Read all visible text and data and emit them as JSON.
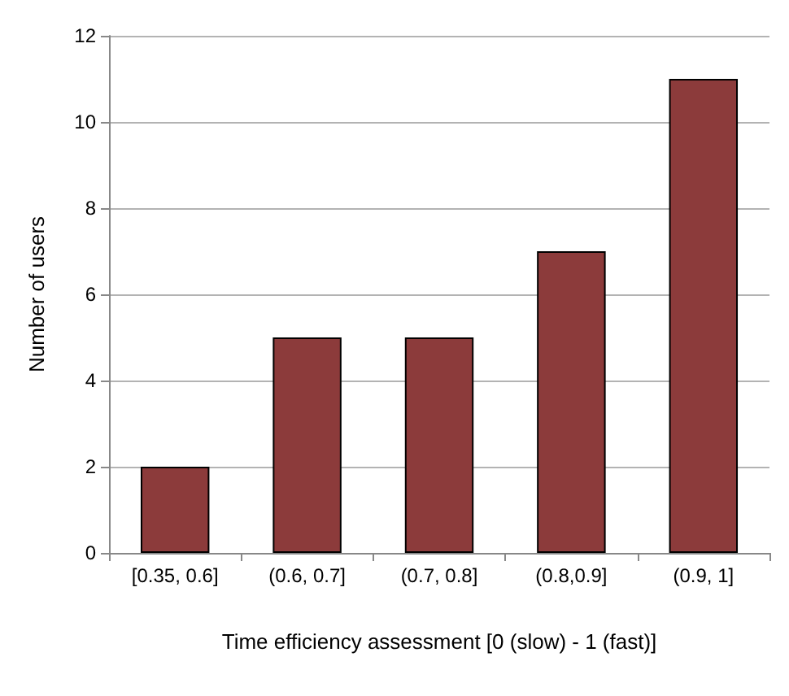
{
  "chart_data": {
    "type": "bar",
    "xlabel": "Time efficiency assessment [0 (slow) - 1 (fast)]",
    "ylabel": "Number of users",
    "categories": [
      "[0.35, 0.6]",
      "(0.6, 0.7]",
      "(0.7, 0.8]",
      "(0.8,0.9]",
      "(0.9, 1]"
    ],
    "values": [
      2,
      5,
      5,
      7,
      11
    ],
    "color": "#8c3b3b",
    "ylim": [
      0,
      12
    ],
    "yticks": [
      0,
      2,
      4,
      6,
      8,
      10,
      12
    ],
    "grid": "y"
  }
}
